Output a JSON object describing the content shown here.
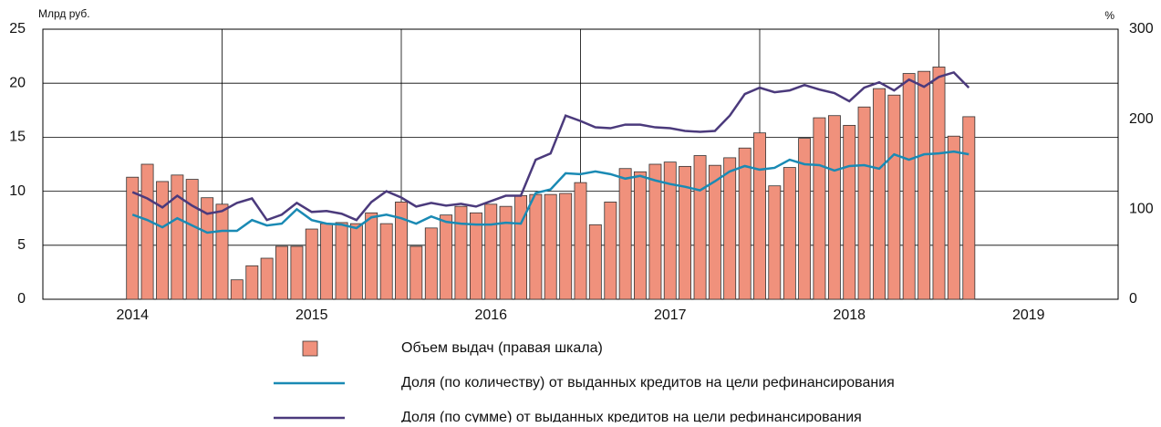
{
  "chart_data": {
    "type": "bar_line",
    "y_label": "Млрд руб.",
    "y2_label": "%",
    "x": [
      2014,
      2014.083,
      2014.167,
      2014.25,
      2014.333,
      2014.417,
      2014.5,
      2014.583,
      2014.667,
      2014.75,
      2014.833,
      2014.917,
      2015,
      2015.083,
      2015.167,
      2015.25,
      2015.333,
      2015.417,
      2015.5,
      2015.583,
      2015.667,
      2015.75,
      2015.833,
      2015.917,
      2016,
      2016.083,
      2016.167,
      2016.25,
      2016.333,
      2016.417,
      2016.5,
      2016.583,
      2016.667,
      2016.75,
      2016.833,
      2016.917,
      2017,
      2017.083,
      2017.167,
      2017.25,
      2017.333,
      2017.417,
      2017.5,
      2017.583,
      2017.667,
      2017.75,
      2017.833,
      2017.917,
      2018,
      2018.083,
      2018.167,
      2018.25,
      2018.333,
      2018.417,
      2018.5,
      2018.583,
      2018.667
    ],
    "xlim": [
      2013.5,
      2019.5
    ],
    "xticks": [
      2014,
      2015,
      2016,
      2017,
      2018,
      2019
    ],
    "ylim": [
      0,
      25
    ],
    "yticks": [
      0,
      5,
      10,
      15,
      20,
      25
    ],
    "y2lim": [
      0,
      300
    ],
    "y2ticks": [
      0,
      100,
      200,
      300
    ],
    "grid": true,
    "series": [
      {
        "name": "Объем выдач (правая шкала)",
        "kind": "bar",
        "color": "#f0917c",
        "values": [
          11.3,
          12.5,
          10.9,
          11.5,
          11.1,
          9.4,
          8.8,
          1.8,
          3.1,
          3.8,
          4.9,
          4.9,
          6.5,
          7.0,
          7.1,
          7.0,
          8.0,
          7.0,
          9.0,
          4.9,
          6.6,
          7.8,
          8.6,
          8.0,
          8.8,
          8.6,
          9.6,
          9.7,
          9.7,
          9.8,
          10.8,
          6.9,
          9.0,
          12.1,
          11.8,
          12.5,
          12.7,
          12.3,
          13.3,
          12.4,
          13.1,
          14.0,
          15.4,
          10.5,
          12.2,
          14.9,
          16.8,
          17.0,
          16.1,
          17.8,
          19.5,
          18.9,
          20.9,
          21.1,
          21.5,
          15.1,
          16.9
        ]
      },
      {
        "name": "Доля (по количеству) от выданных кредитов на цели рефинансирования",
        "kind": "line",
        "axis": "y2",
        "color": "#1a8ab4",
        "values": [
          94,
          88,
          80,
          90,
          82,
          74,
          76,
          76,
          88,
          82,
          84,
          100,
          88,
          84,
          83,
          79,
          91,
          94,
          90,
          84,
          92,
          86,
          84,
          83,
          83,
          85,
          84,
          118,
          122,
          140,
          139,
          142,
          139,
          134,
          137,
          132,
          128,
          125,
          121,
          131,
          142,
          148,
          144,
          146,
          155,
          150,
          149,
          143,
          148,
          149,
          145,
          161,
          155,
          161,
          162,
          164,
          161
        ]
      },
      {
        "name": "Доля (по сумме) от выданных кредитов на цели рефинансирования",
        "kind": "line",
        "axis": "y2",
        "color": "#4b3a7c",
        "values": [
          119,
          112,
          102,
          115,
          104,
          95,
          98,
          107,
          112,
          88,
          94,
          107,
          97,
          98,
          95,
          88,
          108,
          120,
          113,
          103,
          107,
          104,
          106,
          103,
          109,
          115,
          115,
          155,
          162,
          204,
          198,
          191,
          190,
          194,
          194,
          191,
          190,
          187,
          186,
          187,
          204,
          228,
          235,
          230,
          232,
          238,
          233,
          229,
          220,
          235,
          241,
          232,
          244,
          236,
          247,
          252,
          235
        ]
      }
    ]
  }
}
